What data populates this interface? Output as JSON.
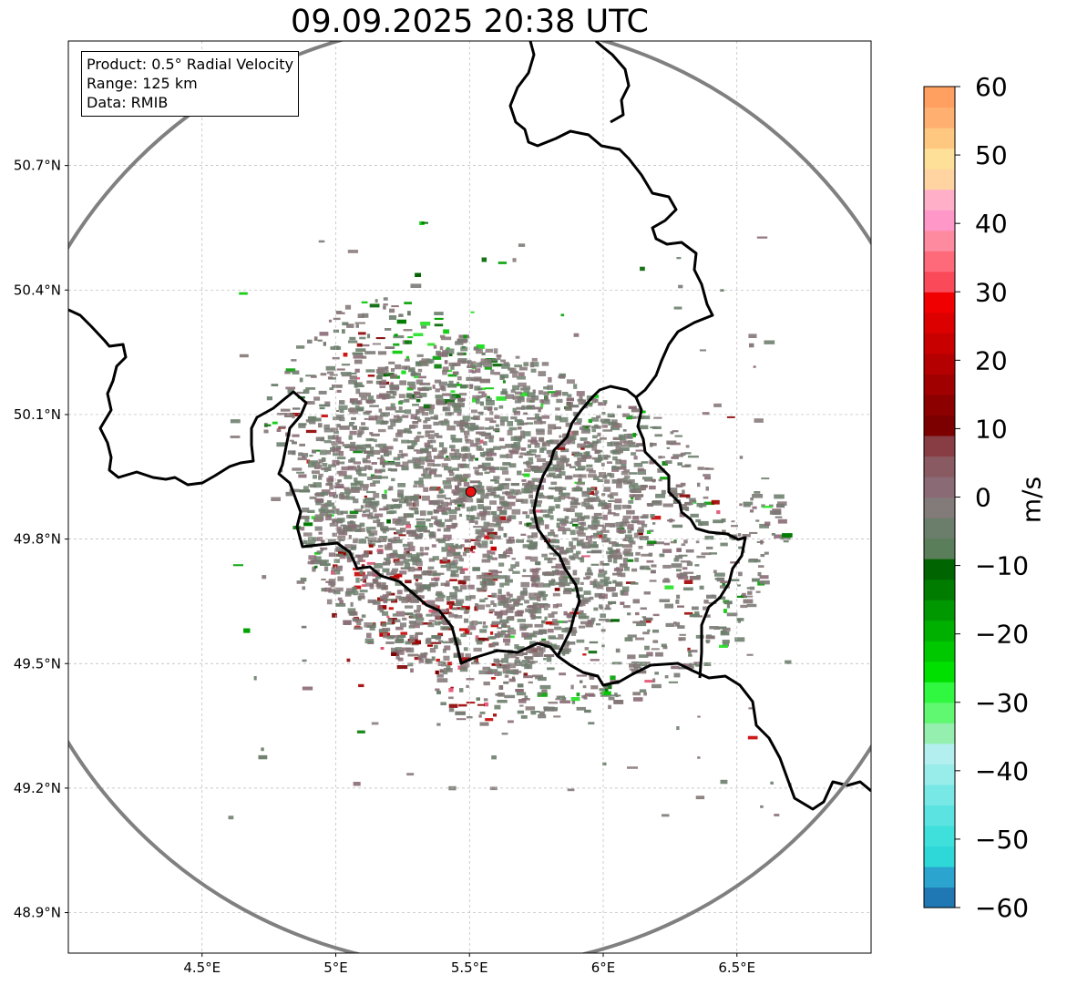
{
  "title": "09.09.2025 20:38 UTC",
  "info": {
    "product": "Product: 0.5° Radial Velocity",
    "range": "Range: 125 km",
    "data": "Data: RMIB"
  },
  "map": {
    "lon_ticks": [
      {
        "value": 4.5,
        "label": "4.5°E"
      },
      {
        "value": 5.0,
        "label": "5°E"
      },
      {
        "value": 5.5,
        "label": "5.5°E"
      },
      {
        "value": 6.0,
        "label": "6°E"
      },
      {
        "value": 6.5,
        "label": "6.5°E"
      }
    ],
    "lat_ticks": [
      {
        "value": 50.7,
        "label": "50.7°N"
      },
      {
        "value": 50.4,
        "label": "50.4°N"
      },
      {
        "value": 50.1,
        "label": "50.1°N"
      },
      {
        "value": 49.8,
        "label": "49.8°N"
      },
      {
        "value": 49.5,
        "label": "49.5°N"
      },
      {
        "value": 49.2,
        "label": "49.2°N"
      },
      {
        "value": 48.9,
        "label": "48.9°N"
      }
    ],
    "lon_range": [
      4.0,
      7.0
    ],
    "lat_range": [
      48.8,
      51.0
    ],
    "radar_site": {
      "lon": 5.505,
      "lat": 49.914
    },
    "range_ring_km": 125,
    "grid": true
  },
  "colorbar": {
    "label": "m/s",
    "min": -60,
    "max": 60,
    "ticks": [
      {
        "value": 60,
        "label": "60"
      },
      {
        "value": 50,
        "label": "50"
      },
      {
        "value": 40,
        "label": "40"
      },
      {
        "value": 30,
        "label": "30"
      },
      {
        "value": 20,
        "label": "20"
      },
      {
        "value": 10,
        "label": "10"
      },
      {
        "value": 0,
        "label": "0"
      },
      {
        "value": -10,
        "label": "−10"
      },
      {
        "value": -20,
        "label": "−20"
      },
      {
        "value": -30,
        "label": "−30"
      },
      {
        "value": -40,
        "label": "−40"
      },
      {
        "value": -50,
        "label": "−50"
      },
      {
        "value": -60,
        "label": "−60"
      }
    ],
    "colors": [
      "#1f78b4",
      "#2ba5d0",
      "#2ed8d8",
      "#3fe0dc",
      "#5ae3e0",
      "#78e8e6",
      "#98ecea",
      "#b3efef",
      "#95f0b0",
      "#60f870",
      "#30f840",
      "#00e000",
      "#00c800",
      "#00b000",
      "#009800",
      "#007c00",
      "#006400",
      "#5a7d5a",
      "#6b7d6b",
      "#837a7a",
      "#8a6b75",
      "#8a5a62",
      "#883c44",
      "#7c0000",
      "#8c0000",
      "#a00000",
      "#b40000",
      "#c80000",
      "#dc0000",
      "#f00000",
      "#fa4a5a",
      "#fe6a7a",
      "#fe8aa0",
      "#ff98c8",
      "#ffb0c8",
      "#ffd4a0",
      "#ffe098",
      "#ffc880",
      "#ffb070",
      "#ffa060"
    ]
  }
}
